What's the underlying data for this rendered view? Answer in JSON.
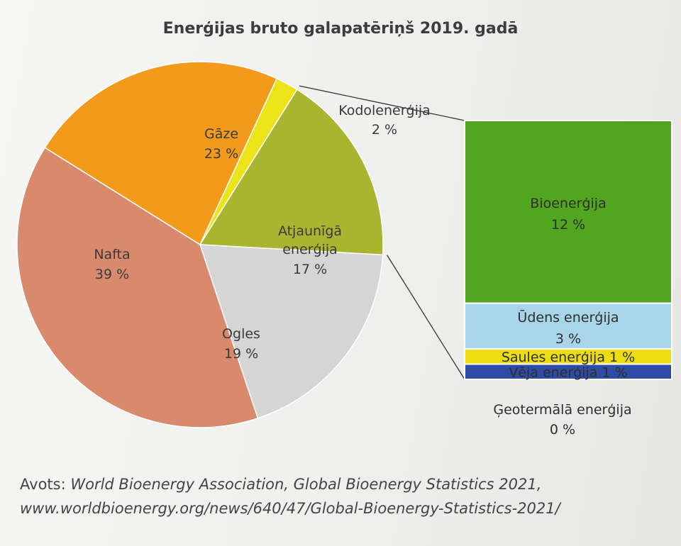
{
  "chart_data": {
    "type": "pie",
    "title": "Enerģijas bruto galapatēriņš 2019. gadā",
    "slices": [
      {
        "label": "Gāze",
        "value": 23,
        "value_label": "23 %",
        "color": "#f39a1c"
      },
      {
        "label": "Kodolenerģija",
        "value": 2,
        "value_label": "2 %",
        "color": "#ece418"
      },
      {
        "label": "Atjaunīgā enerģija",
        "value": 17,
        "value_label": "17 %",
        "color": "#a9b530"
      },
      {
        "label": "Ogles",
        "value": 19,
        "value_label": "19 %",
        "color": "#d5d5d5"
      },
      {
        "label": "Nafta",
        "value": 39,
        "value_label": "39 %",
        "color": "#d98a6c"
      }
    ],
    "breakdown": {
      "of": "Atjaunīgā enerģija",
      "items": [
        {
          "label": "Bioenerģija",
          "value": 12,
          "value_label": "12 %",
          "color": "#52a51e"
        },
        {
          "label": "Ūdens enerģija",
          "value": 3,
          "value_label": "3 %",
          "color": "#a8d5ea"
        },
        {
          "label": "Saules enerģija",
          "value": 1,
          "value_label": "1 %",
          "color": "#ecdd13"
        },
        {
          "label": "Vēja enerģija",
          "value": 1,
          "value_label": "1 %",
          "color": "#2e4ba5"
        },
        {
          "label": "Ģeotermālā enerģija",
          "value": 0,
          "value_label": "0 %",
          "color": "#999999"
        }
      ]
    }
  },
  "source": {
    "prefix": "Avots: ",
    "line1": "World Bioenergy Association, Global Bioenergy Statistics 2021,",
    "line2": "www.worldbioenergy.org/news/640/47/Global-Bioenergy-Statistics-2021/"
  }
}
